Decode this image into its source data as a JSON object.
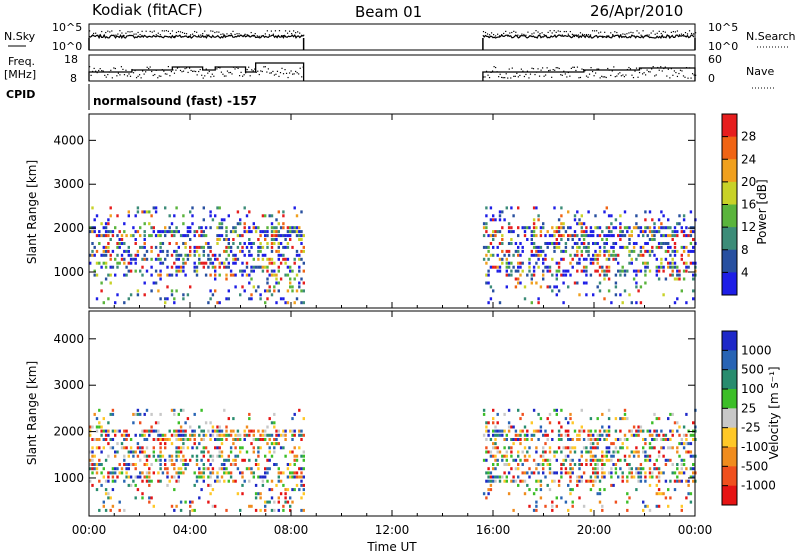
{
  "header": {
    "station": "Kodiak (fitACF)",
    "beam": "Beam 01",
    "date": "26/Apr/2010"
  },
  "top_panels": {
    "nsky_label": "N.Sky",
    "nsearch_label": "N.Search",
    "nsky_ticks": [
      "10^5",
      "10^0"
    ],
    "nsearch_ticks": [
      "10^5",
      "10^0"
    ],
    "freq_label_1": "Freq.",
    "freq_label_2": "[MHz]",
    "freq_ticks": [
      "18",
      "8"
    ],
    "nave_label": "Nave",
    "nave_ticks": [
      "60",
      "0"
    ],
    "cpid_label": "CPID",
    "cpid_text": "normalsound (fast) -157"
  },
  "colors": {
    "power": [
      "#1e1ee6",
      "#2850a0",
      "#3c8c78",
      "#5ab43c",
      "#c8d228",
      "#f0a01e",
      "#f06414",
      "#e61e1e"
    ],
    "velocity": [
      "#1e28c8",
      "#2864b4",
      "#288c6e",
      "#3cbe28",
      "#c8c8c8",
      "#ffc828",
      "#f08c1e",
      "#f0501e",
      "#e61414"
    ]
  },
  "chart_data": [
    {
      "type": "heatmap",
      "name": "power",
      "ylabel": "Slant Range [km]",
      "ylim": [
        180,
        4600
      ],
      "yticks": [
        "1000",
        "2000",
        "3000",
        "4000"
      ],
      "xlim": [
        0,
        24
      ],
      "colorbar_label": "Power [dB]",
      "colorbar_ticks": [
        "4",
        "8",
        "12",
        "16",
        "20",
        "24",
        "28"
      ],
      "colorbar_range": [
        0,
        32
      ],
      "data_intervals_ut": [
        [
          0,
          8.5
        ],
        [
          15.6,
          24
        ]
      ]
    },
    {
      "type": "heatmap",
      "name": "velocity",
      "ylabel": "Slant Range [km]",
      "ylim": [
        180,
        4600
      ],
      "yticks": [
        "1000",
        "2000",
        "3000",
        "4000"
      ],
      "xlim": [
        0,
        24
      ],
      "colorbar_label": "Velocity [m s⁻¹]",
      "colorbar_ticks": [
        "1000",
        "500",
        "100",
        "25",
        "-25",
        "-100",
        "-500",
        "-1000"
      ],
      "data_intervals_ut": [
        [
          0,
          8.5
        ],
        [
          15.6,
          24
        ]
      ]
    }
  ],
  "x_axis": {
    "ticks": [
      "00:00",
      "04:00",
      "08:00",
      "12:00",
      "16:00",
      "20:00",
      "00:00"
    ],
    "label": "Time UT"
  }
}
